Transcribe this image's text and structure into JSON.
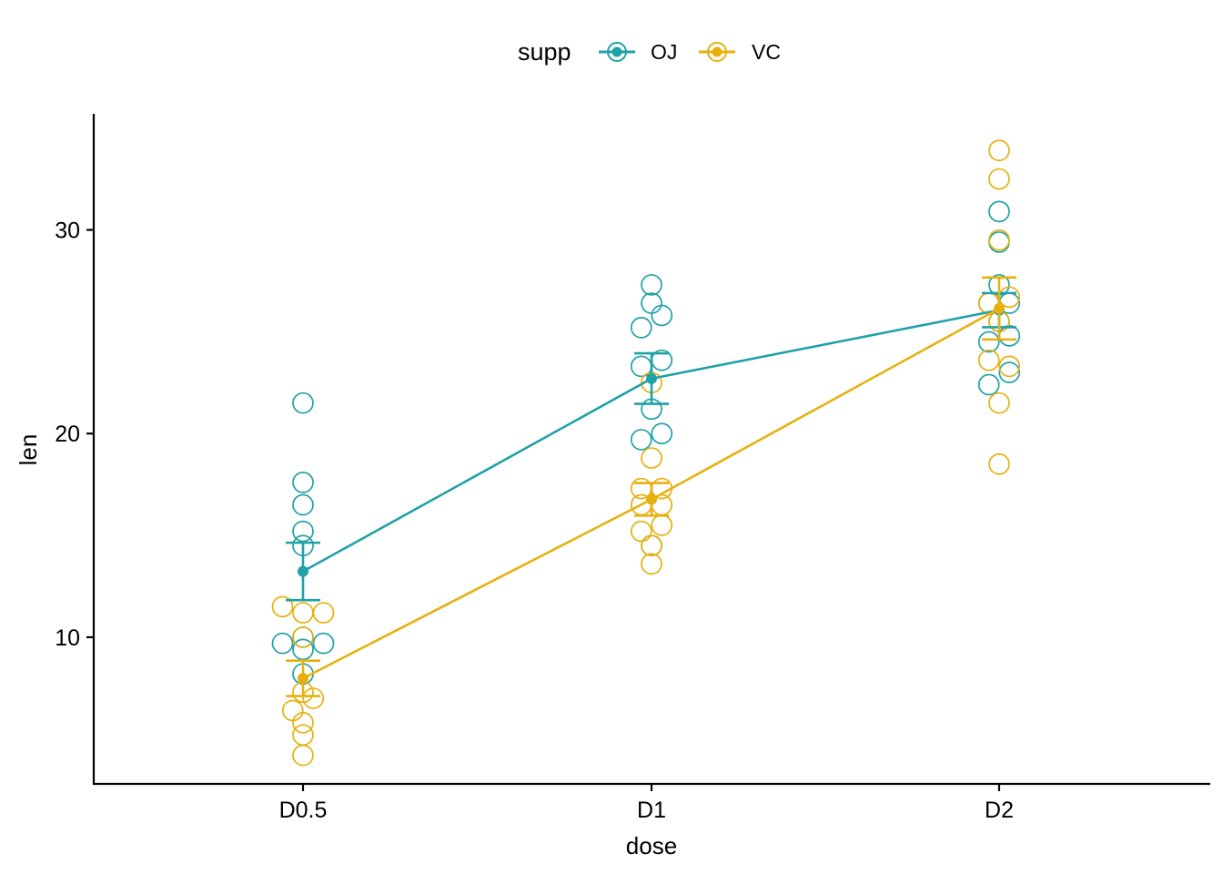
{
  "chart_data": {
    "type": "line",
    "title": "",
    "xlabel": "dose",
    "ylabel": "len",
    "categories": [
      "D0.5",
      "D1",
      "D2"
    ],
    "ylim": [
      2.8,
      35.7
    ],
    "yticks": [
      10,
      20,
      30
    ],
    "grid": false,
    "legend": {
      "title": "supp",
      "position": "top"
    },
    "series": [
      {
        "name": "OJ",
        "color": "#1fa1a8",
        "mean": [
          13.23,
          22.7,
          26.06
        ],
        "se": [
          1.41,
          1.24,
          0.84
        ],
        "points": [
          [
            15.2,
            21.5,
            17.6,
            9.7,
            14.5,
            10.0,
            8.2,
            9.4,
            16.5,
            9.7
          ],
          [
            19.7,
            23.3,
            23.6,
            26.4,
            20.0,
            25.2,
            25.8,
            21.2,
            14.5,
            27.3
          ],
          [
            25.5,
            26.4,
            22.4,
            24.5,
            24.8,
            30.9,
            26.4,
            27.3,
            29.4,
            23.0
          ]
        ]
      },
      {
        "name": "VC",
        "color": "#e6b10e",
        "mean": [
          7.98,
          16.77,
          26.14
        ],
        "se": [
          0.87,
          0.8,
          1.52
        ],
        "points": [
          [
            4.2,
            11.5,
            7.3,
            5.8,
            6.4,
            10.0,
            11.2,
            11.2,
            5.2,
            7.0
          ],
          [
            16.5,
            16.5,
            15.2,
            17.3,
            22.5,
            17.3,
            13.6,
            14.5,
            18.8,
            15.5
          ],
          [
            23.6,
            18.5,
            33.9,
            25.5,
            26.4,
            32.5,
            26.7,
            21.5,
            23.3,
            29.5
          ]
        ]
      }
    ]
  }
}
